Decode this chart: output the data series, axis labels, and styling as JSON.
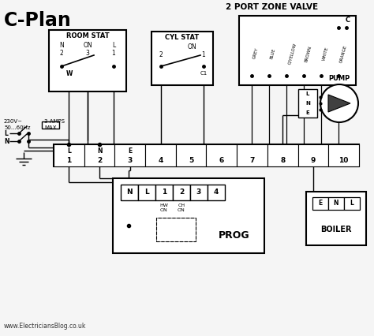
{
  "title_left": "C-Plan",
  "title_right": "2 PORT ZONE VALVE",
  "bg_color": "#f5f5f5",
  "website": "www.ElectriciansBlog.co.uk",
  "voltage_label": "230V~\n50...60Hz",
  "amps_label": "3 AMPS\nMAX",
  "zone_valve_wires": [
    "GREY",
    "BLUE",
    "G/YELLOW",
    "BROWN",
    "WHITE",
    "ORANGE"
  ],
  "prog_terminals": [
    "N",
    "L",
    "1",
    "2",
    "3",
    "4"
  ],
  "terminal_letters": [
    "L",
    "N",
    "E",
    "",
    "",
    "",
    "",
    "",
    "",
    ""
  ],
  "terminal_numbers": [
    "1",
    "2",
    "3",
    "4",
    "5",
    "6",
    "7",
    "8",
    "9",
    "10"
  ],
  "room_stat_label": "ROOM STAT",
  "cyl_stat_label": "CYL STAT",
  "prog_label": "PROG",
  "boiler_label": "BOILER",
  "pump_label": "PUMP",
  "hw_label": "HW\nON",
  "ch_label": "CH\nON"
}
